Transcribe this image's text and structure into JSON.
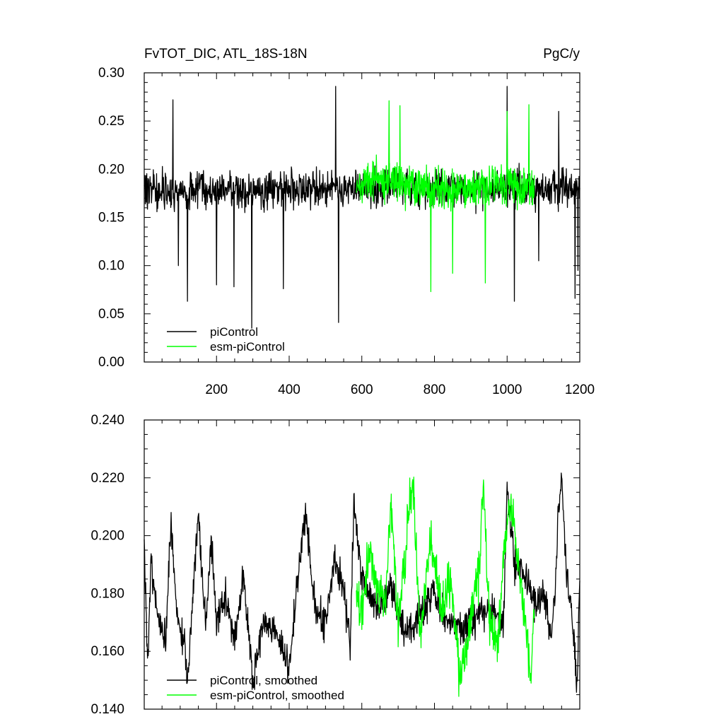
{
  "chart_data": [
    {
      "type": "line",
      "title": "FvTOT_DIC, ATL_18S-18N",
      "units": "PgC/y",
      "xlabel": "",
      "ylabel": "",
      "xlim": [
        1,
        1200
      ],
      "ylim": [
        0.0,
        0.3
      ],
      "x_ticks": [
        200,
        400,
        600,
        800,
        1000,
        1200
      ],
      "x_tick_labels": [
        "200",
        "400",
        "600",
        "800",
        "1000",
        "1200"
      ],
      "y_ticks": [
        0.0,
        0.05,
        0.1,
        0.15,
        0.2,
        0.25,
        0.3
      ],
      "y_tick_labels": [
        "0.00",
        "0.05",
        "0.10",
        "0.15",
        "0.20",
        "0.25",
        "0.30"
      ],
      "grid": false,
      "legend_position": "bottom-left",
      "series": [
        {
          "name": "piControl",
          "color": "#000000",
          "x_start": 1,
          "x_end": 1200,
          "anchors": [
            [
              1,
              0.18
            ],
            [
              40,
              0.18
            ],
            [
              80,
              0.175
            ],
            [
              120,
              0.178
            ],
            [
              160,
              0.182
            ],
            [
              200,
              0.176
            ],
            [
              260,
              0.18
            ],
            [
              300,
              0.174
            ],
            [
              360,
              0.18
            ],
            [
              420,
              0.178
            ],
            [
              480,
              0.18
            ],
            [
              540,
              0.182
            ],
            [
              580,
              0.18
            ],
            [
              640,
              0.182
            ],
            [
              700,
              0.185
            ],
            [
              760,
              0.18
            ],
            [
              820,
              0.178
            ],
            [
              880,
              0.18
            ],
            [
              940,
              0.176
            ],
            [
              1000,
              0.182
            ],
            [
              1060,
              0.18
            ],
            [
              1100,
              0.178
            ],
            [
              1150,
              0.18
            ],
            [
              1200,
              0.18
            ]
          ],
          "noise_amplitude": 0.028,
          "extremes": [
            [
              80,
              0.272
            ],
            [
              95,
              0.1
            ],
            [
              120,
              0.063
            ],
            [
              200,
              0.08
            ],
            [
              248,
              0.078
            ],
            [
              297,
              0.035
            ],
            [
              384,
              0.076
            ],
            [
              528,
              0.286
            ],
            [
              536,
              0.041
            ],
            [
              1000,
              0.286
            ],
            [
              1020,
              0.063
            ],
            [
              1087,
              0.105
            ],
            [
              1142,
              0.26
            ],
            [
              1187,
              0.066
            ],
            [
              1195,
              0.095
            ]
          ]
        },
        {
          "name": "esm-piControl",
          "color": "#00ff00",
          "x_start": 585,
          "x_end": 1075,
          "anchors": [
            [
              585,
              0.185
            ],
            [
              640,
              0.19
            ],
            [
              700,
              0.185
            ],
            [
              760,
              0.182
            ],
            [
              820,
              0.18
            ],
            [
              880,
              0.178
            ],
            [
              940,
              0.185
            ],
            [
              1000,
              0.182
            ],
            [
              1040,
              0.18
            ],
            [
              1075,
              0.18
            ]
          ],
          "noise_amplitude": 0.03,
          "extremes": [
            [
              675,
              0.271
            ],
            [
              705,
              0.266
            ],
            [
              790,
              0.073
            ],
            [
              850,
              0.092
            ],
            [
              940,
              0.082
            ],
            [
              1000,
              0.26
            ],
            [
              1060,
              0.267
            ]
          ]
        }
      ]
    },
    {
      "type": "line",
      "title": "",
      "xlabel": "",
      "ylabel": "",
      "xlim": [
        1,
        1200
      ],
      "ylim": [
        0.14,
        0.24
      ],
      "y_ticks": [
        0.14,
        0.16,
        0.18,
        0.2,
        0.22,
        0.24
      ],
      "y_tick_labels": [
        "0.140",
        "0.160",
        "0.180",
        "0.200",
        "0.220",
        "0.240"
      ],
      "grid": false,
      "legend_position": "bottom-left",
      "series": [
        {
          "name": "piControl, smoothed",
          "color": "#000000",
          "x_start": 1,
          "x_end": 1200,
          "anchors": [
            [
              1,
              0.2
            ],
            [
              10,
              0.157
            ],
            [
              20,
              0.188
            ],
            [
              40,
              0.172
            ],
            [
              60,
              0.165
            ],
            [
              75,
              0.205
            ],
            [
              90,
              0.172
            ],
            [
              115,
              0.16
            ],
            [
              120,
              0.147
            ],
            [
              140,
              0.19
            ],
            [
              150,
              0.207
            ],
            [
              170,
              0.168
            ],
            [
              185,
              0.2
            ],
            [
              200,
              0.172
            ],
            [
              225,
              0.178
            ],
            [
              250,
              0.165
            ],
            [
              275,
              0.187
            ],
            [
              300,
              0.15
            ],
            [
              330,
              0.17
            ],
            [
              360,
              0.168
            ],
            [
              400,
              0.155
            ],
            [
              420,
              0.18
            ],
            [
              445,
              0.208
            ],
            [
              470,
              0.175
            ],
            [
              500,
              0.17
            ],
            [
              525,
              0.193
            ],
            [
              550,
              0.18
            ],
            [
              568,
              0.161
            ],
            [
              578,
              0.212
            ],
            [
              600,
              0.185
            ],
            [
              640,
              0.175
            ],
            [
              680,
              0.182
            ],
            [
              720,
              0.165
            ],
            [
              760,
              0.172
            ],
            [
              800,
              0.18
            ],
            [
              830,
              0.17
            ],
            [
              880,
              0.168
            ],
            [
              920,
              0.172
            ],
            [
              960,
              0.175
            ],
            [
              990,
              0.17
            ],
            [
              1000,
              0.216
            ],
            [
              1020,
              0.19
            ],
            [
              1050,
              0.185
            ],
            [
              1080,
              0.175
            ],
            [
              1100,
              0.18
            ],
            [
              1125,
              0.165
            ],
            [
              1140,
              0.205
            ],
            [
              1150,
              0.221
            ],
            [
              1165,
              0.185
            ],
            [
              1185,
              0.162
            ],
            [
              1192,
              0.148
            ],
            [
              1200,
              0.185
            ]
          ],
          "noise_amplitude": 0.009
        },
        {
          "name": "esm-piControl, smoothed",
          "color": "#00ff00",
          "x_start": 585,
          "x_end": 1075,
          "anchors": [
            [
              585,
              0.18
            ],
            [
              600,
              0.172
            ],
            [
              620,
              0.195
            ],
            [
              640,
              0.183
            ],
            [
              665,
              0.176
            ],
            [
              680,
              0.215
            ],
            [
              700,
              0.17
            ],
            [
              720,
              0.195
            ],
            [
              740,
              0.221
            ],
            [
              760,
              0.165
            ],
            [
              790,
              0.2
            ],
            [
              820,
              0.175
            ],
            [
              845,
              0.185
            ],
            [
              870,
              0.15
            ],
            [
              900,
              0.172
            ],
            [
              925,
              0.19
            ],
            [
              935,
              0.221
            ],
            [
              950,
              0.17
            ],
            [
              975,
              0.16
            ],
            [
              990,
              0.195
            ],
            [
              1010,
              0.213
            ],
            [
              1030,
              0.19
            ],
            [
              1055,
              0.165
            ],
            [
              1065,
              0.153
            ],
            [
              1075,
              0.175
            ]
          ],
          "noise_amplitude": 0.012
        }
      ]
    }
  ]
}
